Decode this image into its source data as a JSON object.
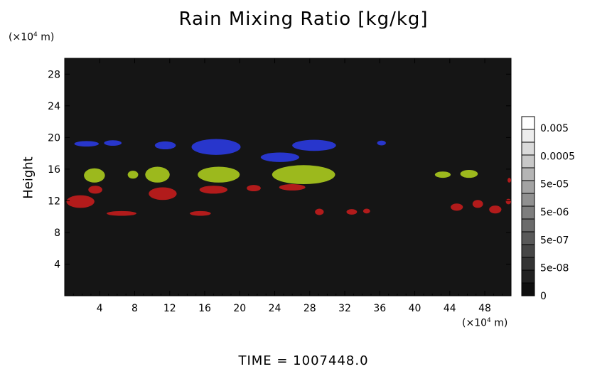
{
  "chart_data": {
    "type": "heatmap",
    "title": "Rain Mixing Ratio [kg/kg]",
    "ylabel": "Height",
    "y_unit": "(×10",
    "y_unit_exp": "4",
    "y_unit_tail": " m)",
    "x_unit": "(×10",
    "x_unit_exp": "4",
    "x_unit_tail": " m)",
    "xlim": [
      0,
      51
    ],
    "ylim": [
      0,
      30
    ],
    "x_ticks": [
      4,
      8,
      12,
      16,
      20,
      24,
      28,
      32,
      36,
      40,
      44,
      48
    ],
    "y_ticks": [
      4,
      8,
      12,
      16,
      20,
      24,
      28
    ],
    "colorbar": {
      "labels": [
        "0.005",
        "0.0005",
        "5e-05",
        "5e-06",
        "5e-07",
        "5e-08",
        "0"
      ],
      "levels": 14
    },
    "background_color": "#151515",
    "regions": [
      {
        "color": "#2a3adc",
        "cx": 2.5,
        "cy": 19.2,
        "rx": 1.4,
        "ry": 0.35
      },
      {
        "color": "#2a3adc",
        "cx": 5.5,
        "cy": 19.3,
        "rx": 1.0,
        "ry": 0.35
      },
      {
        "color": "#2a3adc",
        "cx": 11.5,
        "cy": 19.0,
        "rx": 1.2,
        "ry": 0.5
      },
      {
        "color": "#2a3adc",
        "cx": 17.3,
        "cy": 18.8,
        "rx": 2.8,
        "ry": 1.0
      },
      {
        "color": "#2a3adc",
        "cx": 24.6,
        "cy": 17.5,
        "rx": 2.2,
        "ry": 0.6
      },
      {
        "color": "#2a3adc",
        "cx": 28.5,
        "cy": 19.0,
        "rx": 2.5,
        "ry": 0.7
      },
      {
        "color": "#2a3adc",
        "cx": 36.2,
        "cy": 19.3,
        "rx": 0.5,
        "ry": 0.3
      },
      {
        "color": "#a8c81e",
        "cx": 3.4,
        "cy": 15.2,
        "rx": 1.2,
        "ry": 0.9
      },
      {
        "color": "#a8c81e",
        "cx": 7.8,
        "cy": 15.3,
        "rx": 0.6,
        "ry": 0.5
      },
      {
        "color": "#a8c81e",
        "cx": 10.6,
        "cy": 15.3,
        "rx": 1.4,
        "ry": 1.0
      },
      {
        "color": "#a8c81e",
        "cx": 17.6,
        "cy": 15.3,
        "rx": 2.4,
        "ry": 1.0
      },
      {
        "color": "#a8c81e",
        "cx": 27.3,
        "cy": 15.3,
        "rx": 3.6,
        "ry": 1.2
      },
      {
        "color": "#a8c81e",
        "cx": 43.2,
        "cy": 15.3,
        "rx": 0.9,
        "ry": 0.4
      },
      {
        "color": "#a8c81e",
        "cx": 46.2,
        "cy": 15.4,
        "rx": 1.0,
        "ry": 0.5
      },
      {
        "color": "#c01c1c",
        "cx": 1.8,
        "cy": 11.9,
        "rx": 1.6,
        "ry": 0.8
      },
      {
        "color": "#c01c1c",
        "cx": 3.5,
        "cy": 13.4,
        "rx": 0.8,
        "ry": 0.5
      },
      {
        "color": "#c01c1c",
        "cx": 6.5,
        "cy": 10.4,
        "rx": 1.7,
        "ry": 0.3
      },
      {
        "color": "#c01c1c",
        "cx": 11.2,
        "cy": 12.9,
        "rx": 1.6,
        "ry": 0.8
      },
      {
        "color": "#c01c1c",
        "cx": 15.5,
        "cy": 10.4,
        "rx": 1.2,
        "ry": 0.3
      },
      {
        "color": "#c01c1c",
        "cx": 17.0,
        "cy": 13.4,
        "rx": 1.6,
        "ry": 0.5
      },
      {
        "color": "#c01c1c",
        "cx": 21.6,
        "cy": 13.6,
        "rx": 0.8,
        "ry": 0.4
      },
      {
        "color": "#c01c1c",
        "cx": 26.0,
        "cy": 13.7,
        "rx": 1.5,
        "ry": 0.4
      },
      {
        "color": "#c01c1c",
        "cx": 29.1,
        "cy": 10.6,
        "rx": 0.5,
        "ry": 0.4
      },
      {
        "color": "#c01c1c",
        "cx": 32.8,
        "cy": 10.6,
        "rx": 0.6,
        "ry": 0.35
      },
      {
        "color": "#c01c1c",
        "cx": 34.5,
        "cy": 10.7,
        "rx": 0.4,
        "ry": 0.3
      },
      {
        "color": "#c01c1c",
        "cx": 44.8,
        "cy": 11.2,
        "rx": 0.7,
        "ry": 0.45
      },
      {
        "color": "#c01c1c",
        "cx": 47.2,
        "cy": 11.6,
        "rx": 0.6,
        "ry": 0.5
      },
      {
        "color": "#c01c1c",
        "cx": 49.2,
        "cy": 10.9,
        "rx": 0.7,
        "ry": 0.5
      },
      {
        "color": "#c01c1c",
        "cx": 50.7,
        "cy": 11.9,
        "rx": 0.3,
        "ry": 0.35
      },
      {
        "color": "#c01c1c",
        "cx": 50.8,
        "cy": 14.6,
        "rx": 0.2,
        "ry": 0.3
      }
    ]
  },
  "footer": {
    "time_text": "TIME  =  1007448.0"
  }
}
